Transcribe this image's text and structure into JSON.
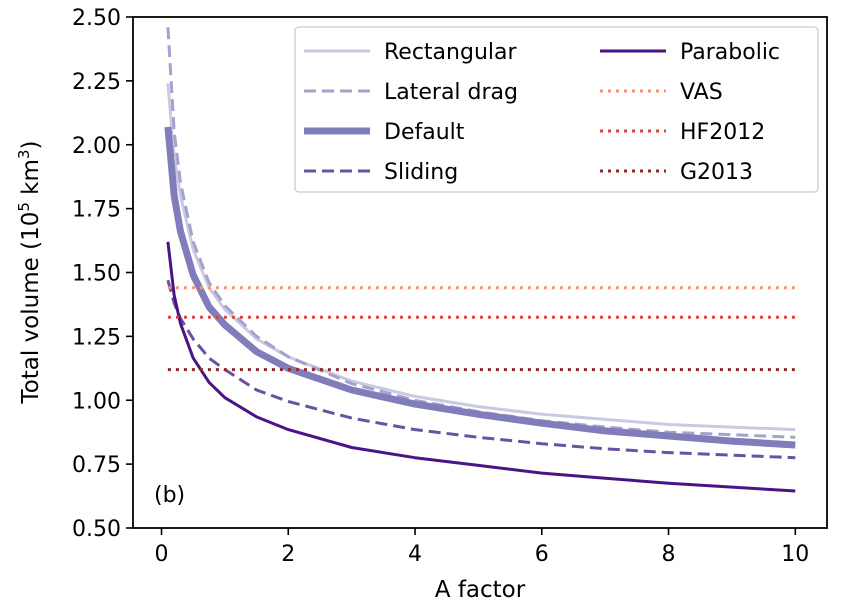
{
  "chart_data": {
    "type": "line",
    "xlabel": "A factor",
    "ylabel_main": "Total volume (10",
    "ylabel_exp1": "5",
    "ylabel_mid": " km",
    "ylabel_exp2": "3",
    "ylabel_end": ")",
    "panel_label": "(b)",
    "xlim": [
      -0.45,
      10.5
    ],
    "ylim": [
      0.5,
      2.5
    ],
    "xticks": [
      0,
      2,
      4,
      6,
      8,
      10
    ],
    "xtick_labels": [
      "0",
      "2",
      "4",
      "6",
      "8",
      "10"
    ],
    "yticks": [
      0.5,
      0.75,
      1.0,
      1.25,
      1.5,
      1.75,
      2.0,
      2.25,
      2.5
    ],
    "ytick_labels": [
      "0.50",
      "0.75",
      "1.00",
      "1.25",
      "1.50",
      "1.75",
      "2.00",
      "2.25",
      "2.50"
    ],
    "grid": false,
    "legend_position": "top-right",
    "series": [
      {
        "name": "Rectangular",
        "color": "#cbc9e2",
        "style": "solid",
        "width": 3,
        "x": [
          0.1,
          0.2,
          0.3,
          0.5,
          0.75,
          1.0,
          1.5,
          2.0,
          3.0,
          4.0,
          5.0,
          6.0,
          7.0,
          8.0,
          9.0,
          10.0
        ],
        "y": [
          2.24,
          1.95,
          1.8,
          1.59,
          1.44,
          1.355,
          1.24,
          1.17,
          1.075,
          1.015,
          0.975,
          0.945,
          0.925,
          0.905,
          0.895,
          0.885
        ]
      },
      {
        "name": "Lateral drag",
        "color": "#a4a2cf",
        "style": "dashed",
        "width": 3,
        "x": [
          0.1,
          0.2,
          0.3,
          0.5,
          0.75,
          1.0,
          1.5,
          2.0,
          3.0,
          4.0,
          5.0,
          6.0,
          7.0,
          8.0,
          9.0,
          10.0
        ],
        "y": [
          2.46,
          2.05,
          1.85,
          1.62,
          1.46,
          1.37,
          1.25,
          1.17,
          1.065,
          1.0,
          0.955,
          0.92,
          0.895,
          0.875,
          0.865,
          0.855
        ]
      },
      {
        "name": "Default",
        "color": "#807dba",
        "style": "solid",
        "width": 7,
        "x": [
          0.1,
          0.2,
          0.3,
          0.5,
          0.75,
          1.0,
          1.5,
          2.0,
          3.0,
          4.0,
          5.0,
          6.0,
          7.0,
          8.0,
          9.0,
          10.0
        ],
        "y": [
          2.07,
          1.8,
          1.66,
          1.49,
          1.365,
          1.295,
          1.19,
          1.125,
          1.04,
          0.985,
          0.945,
          0.91,
          0.88,
          0.86,
          0.84,
          0.825
        ]
      },
      {
        "name": "Sliding",
        "color": "#6a51a3",
        "style": "dashed",
        "width": 3,
        "x": [
          0.1,
          0.2,
          0.3,
          0.5,
          0.75,
          1.0,
          1.5,
          2.0,
          3.0,
          4.0,
          5.0,
          6.0,
          7.0,
          8.0,
          9.0,
          10.0
        ],
        "y": [
          1.47,
          1.38,
          1.32,
          1.24,
          1.165,
          1.12,
          1.04,
          0.995,
          0.93,
          0.885,
          0.855,
          0.83,
          0.81,
          0.795,
          0.785,
          0.775
        ]
      },
      {
        "name": "Parabolic",
        "color": "#4a1486",
        "style": "solid",
        "width": 3,
        "x": [
          0.1,
          0.2,
          0.3,
          0.5,
          0.75,
          1.0,
          1.5,
          2.0,
          3.0,
          4.0,
          5.0,
          6.0,
          7.0,
          8.0,
          9.0,
          10.0
        ],
        "y": [
          1.62,
          1.41,
          1.3,
          1.165,
          1.07,
          1.01,
          0.935,
          0.885,
          0.815,
          0.775,
          0.745,
          0.715,
          0.695,
          0.675,
          0.66,
          0.645
        ]
      },
      {
        "name": "VAS",
        "color": "#fc9272",
        "style": "dotted",
        "width": 3,
        "x": [
          0.1,
          10.0
        ],
        "y": [
          1.44,
          1.44
        ]
      },
      {
        "name": "HF2012",
        "color": "#de4040",
        "style": "dotted",
        "width": 3,
        "x": [
          0.1,
          10.0
        ],
        "y": [
          1.325,
          1.325
        ]
      },
      {
        "name": "G2013",
        "color": "#8b2b2b",
        "style": "dotted",
        "width": 3,
        "x": [
          0.1,
          10.0
        ],
        "y": [
          1.12,
          1.12
        ]
      }
    ]
  }
}
